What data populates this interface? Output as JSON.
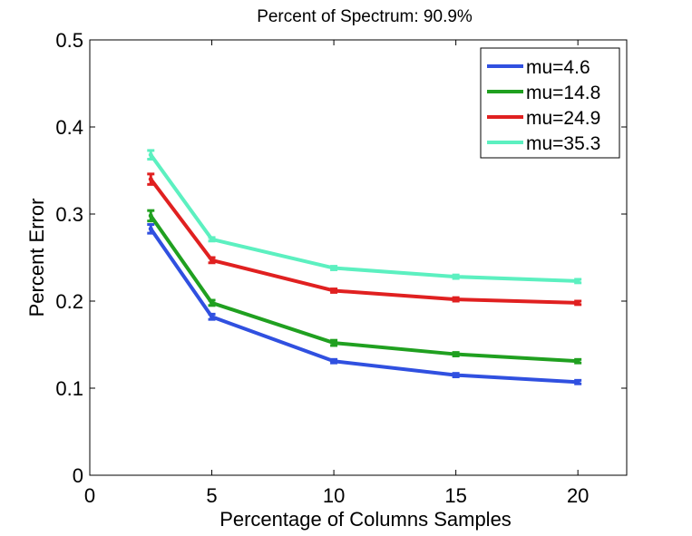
{
  "chart_data": {
    "type": "line",
    "title": "Percent of Spectrum: 90.9%",
    "xlabel": "Percentage of Columns Samples",
    "ylabel": "Percent Error",
    "xlim": [
      0,
      22
    ],
    "ylim": [
      0,
      0.5
    ],
    "xticks": [
      0,
      5,
      10,
      15,
      20
    ],
    "yticks": [
      0,
      0.1,
      0.2,
      0.3,
      0.4,
      0.5
    ],
    "xtick_labels": [
      "0",
      "5",
      "10",
      "15",
      "20"
    ],
    "ytick_labels": [
      "0",
      "0.1",
      "0.2",
      "0.3",
      "0.4",
      "0.5"
    ],
    "legend_position": "top-right",
    "x": [
      2.5,
      5,
      10,
      15,
      20
    ],
    "series": [
      {
        "name": "mu=4.6",
        "color": "#3050e0",
        "values": [
          0.283,
          0.182,
          0.131,
          0.115,
          0.107
        ],
        "errors": [
          0.005,
          0.003,
          0.002,
          0.002,
          0.002
        ]
      },
      {
        "name": "mu=14.8",
        "color": "#20a020",
        "values": [
          0.298,
          0.198,
          0.152,
          0.139,
          0.131
        ],
        "errors": [
          0.006,
          0.003,
          0.003,
          0.002,
          0.002
        ]
      },
      {
        "name": "mu=24.9",
        "color": "#e02020",
        "values": [
          0.34,
          0.247,
          0.212,
          0.202,
          0.198
        ],
        "errors": [
          0.006,
          0.003,
          0.002,
          0.002,
          0.002
        ]
      },
      {
        "name": "mu=35.3",
        "color": "#5cf0c0",
        "values": [
          0.368,
          0.271,
          0.238,
          0.228,
          0.223
        ],
        "errors": [
          0.005,
          0.002,
          0.002,
          0.002,
          0.002
        ]
      }
    ]
  }
}
